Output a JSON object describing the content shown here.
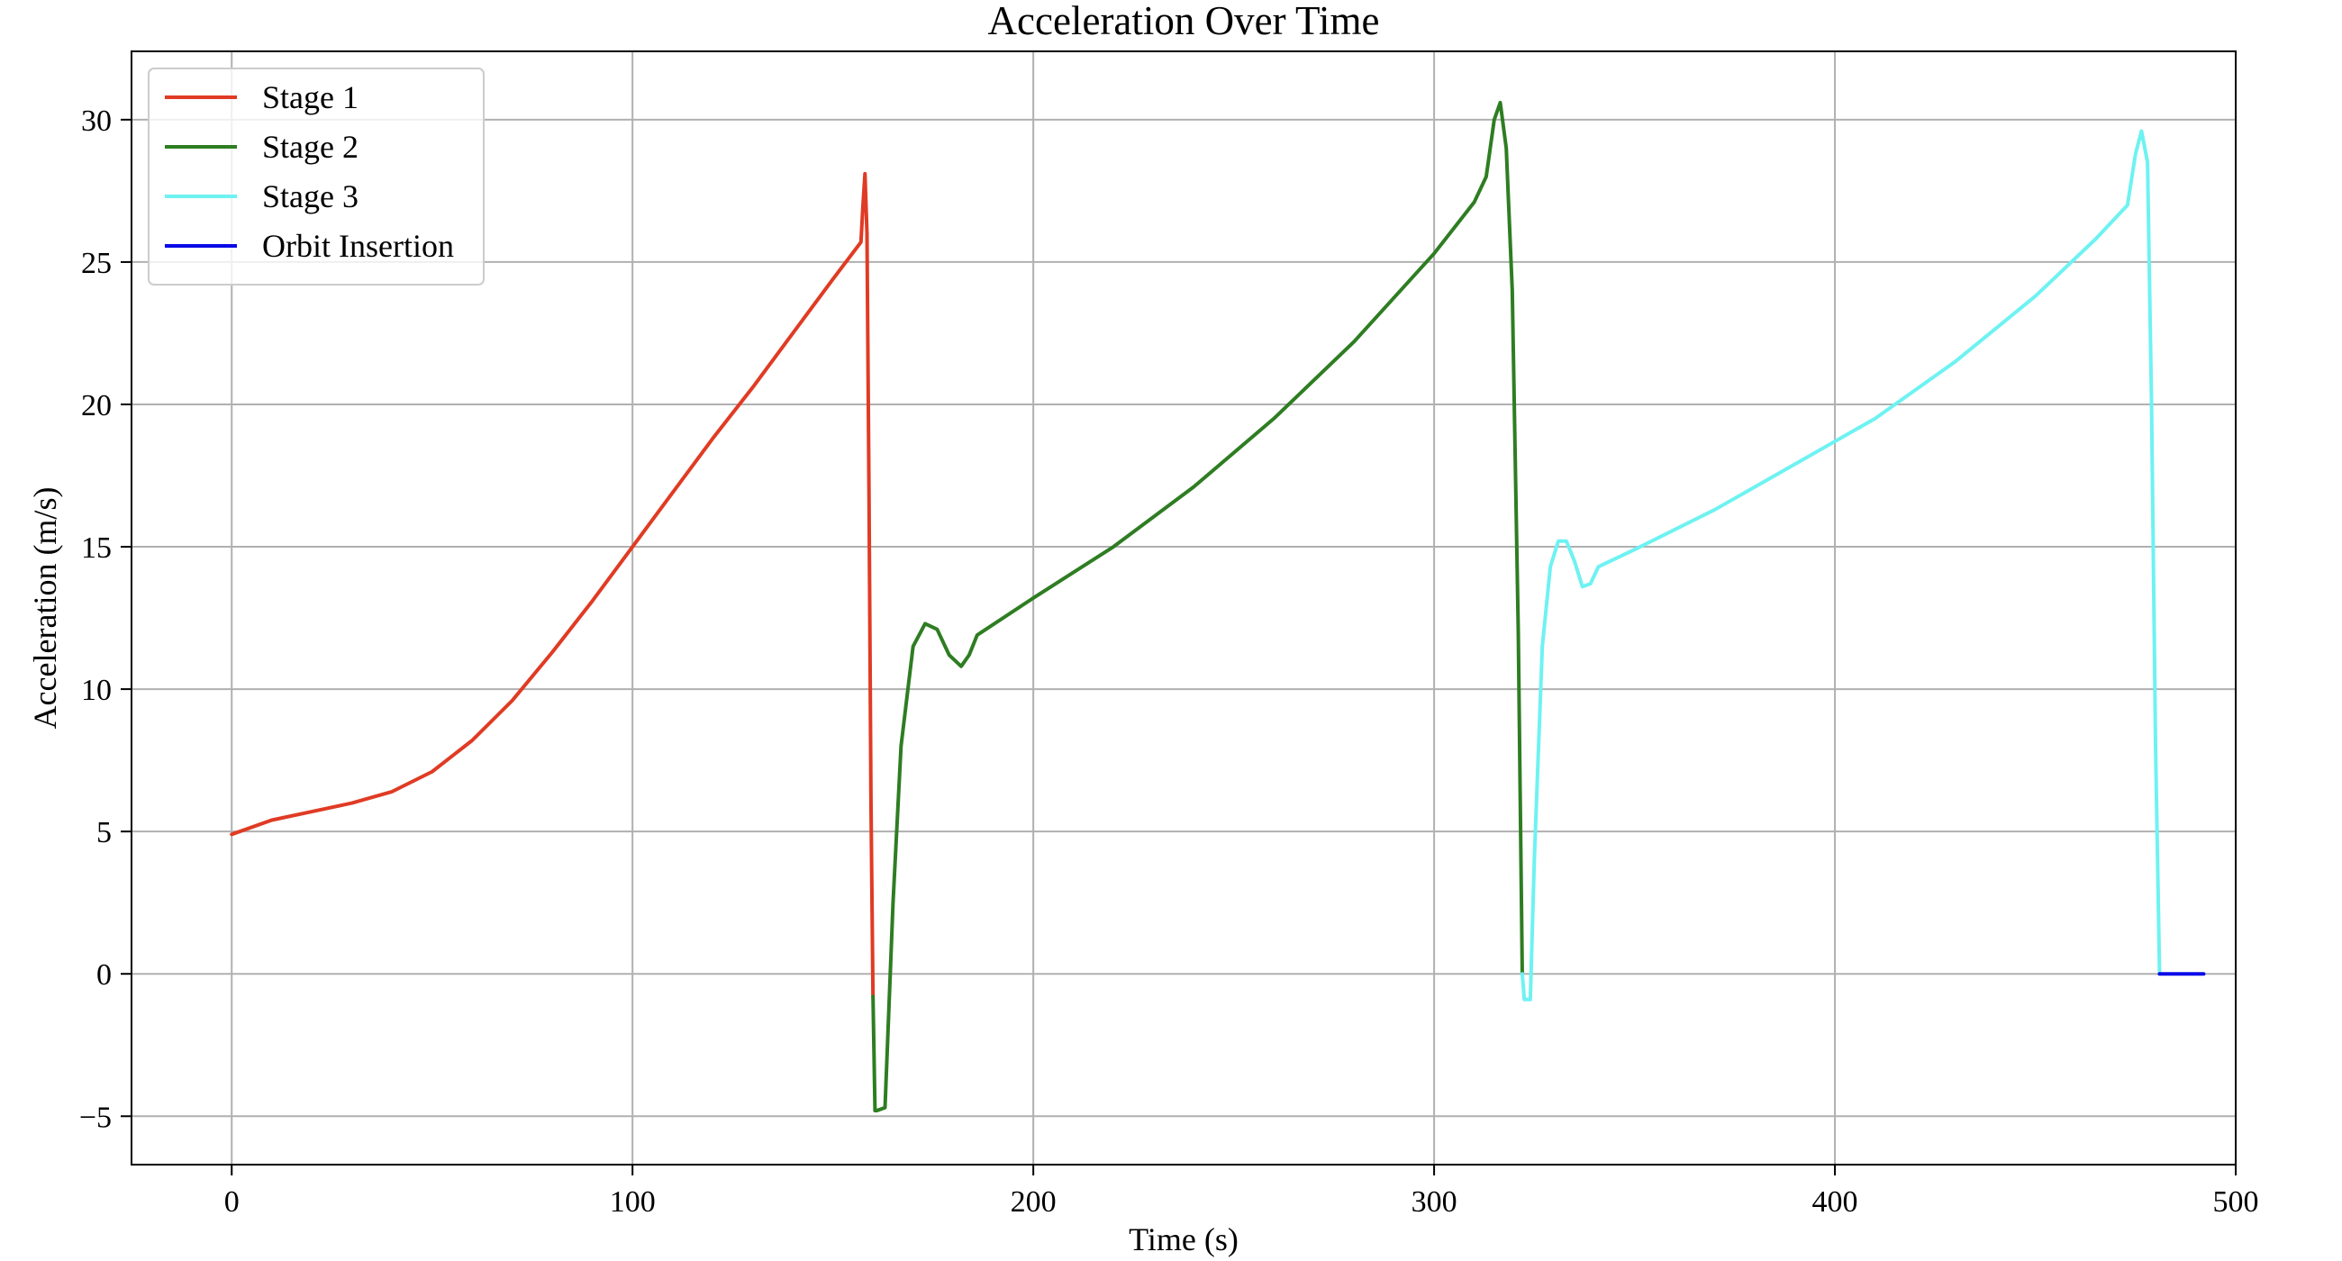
{
  "chart_data": {
    "type": "line",
    "title": "Acceleration Over Time",
    "xlabel": "Time (s)",
    "ylabel": "Acceleration (m/s)",
    "xlim": [
      -25,
      500
    ],
    "ylim": [
      -6.7,
      32.4
    ],
    "xticks": [
      0,
      100,
      200,
      300,
      400,
      500
    ],
    "yticks": [
      -5,
      0,
      5,
      10,
      15,
      20,
      25,
      30
    ],
    "xtick_labels": [
      "0",
      "100",
      "200",
      "300",
      "400",
      "500"
    ],
    "ytick_labels": [
      "−5",
      "0",
      "5",
      "10",
      "15",
      "20",
      "25",
      "30"
    ],
    "grid": true,
    "legend_position": "top-left",
    "series": [
      {
        "name": "Stage 1",
        "color": "#e03b24",
        "x": [
          0,
          10,
          20,
          30,
          40,
          50,
          60,
          70,
          80,
          90,
          100,
          110,
          120,
          130,
          140,
          150,
          157,
          157.5,
          158,
          158.5,
          159,
          159.5,
          160
        ],
        "y": [
          4.9,
          5.4,
          5.7,
          6.0,
          6.4,
          7.1,
          8.2,
          9.6,
          11.3,
          13.1,
          15.0,
          16.9,
          18.8,
          20.6,
          22.5,
          24.4,
          25.7,
          27.0,
          28.1,
          26.0,
          17.0,
          6.0,
          -0.8
        ]
      },
      {
        "name": "Stage 2",
        "color": "#2e7d22",
        "x": [
          160,
          160.5,
          161,
          163,
          165,
          167,
          170,
          173,
          176,
          179,
          182,
          184,
          186,
          200,
          220,
          240,
          260,
          280,
          300,
          310,
          313,
          315,
          316.5,
          318,
          319.5,
          321,
          322
        ],
        "y": [
          -0.8,
          -4.8,
          -4.8,
          -4.7,
          2.5,
          8.0,
          11.5,
          12.3,
          12.1,
          11.2,
          10.8,
          11.2,
          11.9,
          13.2,
          15.0,
          17.1,
          19.5,
          22.2,
          25.3,
          27.1,
          28.0,
          30.0,
          30.6,
          29.0,
          24.0,
          12.0,
          0.0
        ]
      },
      {
        "name": "Stage 3",
        "color": "#6ef2f2",
        "x": [
          322,
          322.5,
          323.5,
          324,
          325,
          327,
          329,
          331,
          333,
          335,
          337,
          339,
          341,
          350,
          370,
          390,
          410,
          430,
          450,
          465,
          473,
          475,
          476.5,
          478,
          479,
          480,
          481
        ],
        "y": [
          0.0,
          -0.9,
          -0.9,
          -0.9,
          4.0,
          11.5,
          14.3,
          15.2,
          15.2,
          14.5,
          13.6,
          13.7,
          14.3,
          14.9,
          16.3,
          17.9,
          19.5,
          21.5,
          23.8,
          25.8,
          27.0,
          28.8,
          29.6,
          28.5,
          20.0,
          8.0,
          0.0
        ]
      },
      {
        "name": "Orbit Insertion",
        "color": "#0a0ae8",
        "x": [
          481,
          492
        ],
        "y": [
          0.0,
          0.0
        ]
      }
    ]
  }
}
